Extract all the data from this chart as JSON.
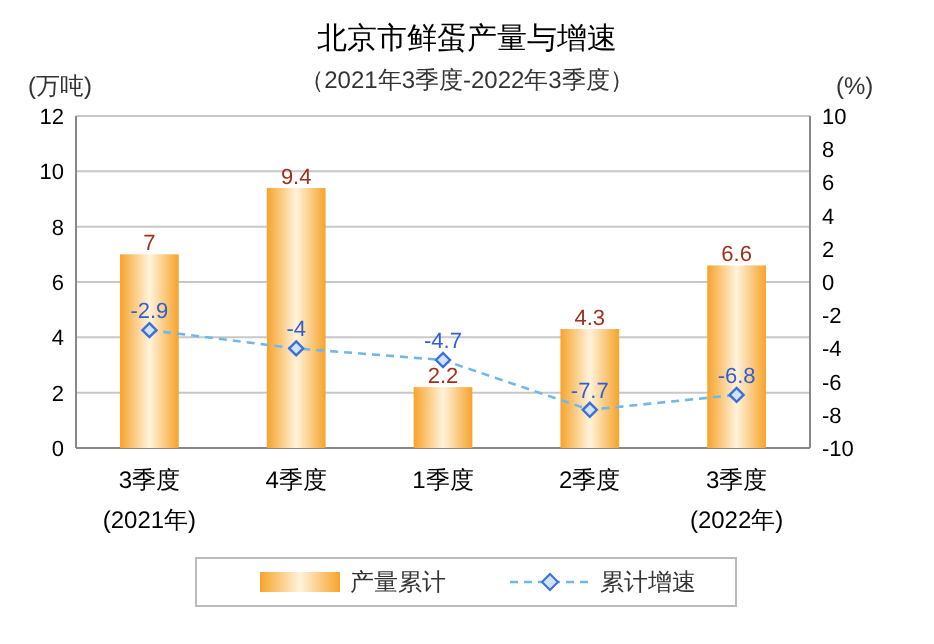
{
  "chart_data": {
    "type": "bar",
    "title": "北京市鲜蛋产量与增速",
    "subtitle": "（2021年3季度-2022年3季度）",
    "ylabel": "(万吨)",
    "y2label": "(%)",
    "categories": [
      "3季度\n(2021年)",
      "4季度",
      "1季度",
      "2季度",
      "3季度\n(2022年)"
    ],
    "series": [
      {
        "name": "产量累计",
        "color": "#f7a32b",
        "values": [
          7,
          9.4,
          2.2,
          4.3,
          6.6
        ]
      },
      {
        "name": "累计增速",
        "type": "line",
        "axis": "y2",
        "color": "#6fb8e8",
        "line_style": "dashed",
        "marker": "diamond",
        "values": [
          -2.9,
          -4,
          -4.7,
          -7.7,
          -6.8
        ]
      }
    ],
    "ylim": [
      0,
      12
    ],
    "yticks": [
      0,
      2,
      4,
      6,
      8,
      10,
      12
    ],
    "y2lim": [
      -10,
      10
    ],
    "y2ticks": [
      -10,
      -8,
      -6,
      -4,
      -2,
      0,
      2,
      4,
      6,
      8,
      10
    ],
    "grid": "y",
    "legend": "bottom",
    "data_labels": true
  }
}
